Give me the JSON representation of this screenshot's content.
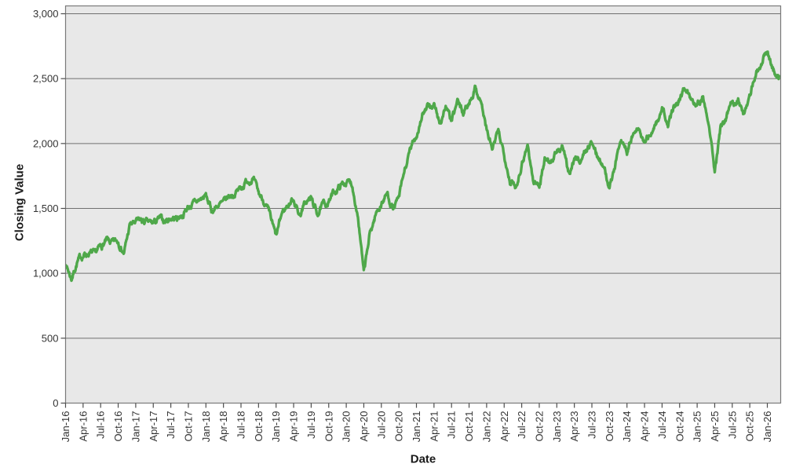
{
  "chart_data": {
    "type": "line",
    "title": "",
    "xlabel": "Date",
    "ylabel": "Closing Value",
    "ylim": [
      0,
      3050
    ],
    "y_ticks": [
      0,
      500,
      1000,
      1500,
      2000,
      2500,
      3000
    ],
    "y_tick_labels": [
      "0",
      "500",
      "1,000",
      "1,500",
      "2,000",
      "2,500",
      "3,000"
    ],
    "x_tick_labels": [
      "Jan-16",
      "Apr-16",
      "Jul-16",
      "Oct-16",
      "Jan-17",
      "Apr-17",
      "Jul-17",
      "Oct-17",
      "Jan-18",
      "Apr-18",
      "Jul-18",
      "Oct-18",
      "Jan-19",
      "Apr-19",
      "Jul-19",
      "Oct-19",
      "Jan-20",
      "Apr-20",
      "Jul-20",
      "Oct-20",
      "Jan-21",
      "Apr-21",
      "Jul-21",
      "Oct-21",
      "Jan-22",
      "Apr-22",
      "Jul-22",
      "Oct-22",
      "Jan-23",
      "Apr-23",
      "Jul-23",
      "Oct-23",
      "Jan-24",
      "Apr-24",
      "Jul-24",
      "Oct-24",
      "Jan-25",
      "Apr-25",
      "Jul-25",
      "Oct-25",
      "Jan-26"
    ],
    "x_tick_interval_months": 3,
    "grid": "horizontal",
    "legend_position": "none",
    "series": [
      {
        "name": "Closing Value",
        "color": "#4fa84a",
        "start_month": "Jan-16",
        "interval": "monthly",
        "values": [
          1080,
          960,
          1090,
          1140,
          1160,
          1140,
          1200,
          1245,
          1225,
          1245,
          1160,
          1370,
          1390,
          1400,
          1385,
          1380,
          1415,
          1400,
          1430,
          1425,
          1455,
          1515,
          1535,
          1565,
          1595,
          1480,
          1525,
          1535,
          1590,
          1620,
          1660,
          1715,
          1735,
          1610,
          1555,
          1430,
          1270,
          1460,
          1525,
          1580,
          1450,
          1540,
          1575,
          1460,
          1520,
          1555,
          1630,
          1675,
          1705,
          1690,
          1450,
          985,
          1290,
          1450,
          1540,
          1615,
          1500,
          1570,
          1790,
          1950,
          2060,
          2230,
          2270,
          2300,
          2150,
          2290,
          2160,
          2320,
          2230,
          2320,
          2430,
          2340,
          2100,
          1950,
          2080,
          1930,
          1720,
          1660,
          1850,
          2000,
          1700,
          1680,
          1890,
          1870,
          1930,
          1970,
          1760,
          1890,
          1870,
          1950,
          2010,
          1890,
          1860,
          1650,
          1850,
          2040,
          1950,
          2060,
          2110,
          1990,
          2080,
          2160,
          2260,
          2130,
          2280,
          2360,
          2430,
          2350,
          2320,
          2360,
          2180,
          1790,
          2100,
          2200,
          2310,
          2350,
          2200,
          2400,
          2530,
          2640,
          2710,
          2560,
          2520
        ]
      }
    ]
  },
  "colors": {
    "plot_bg": "#e8e8e8",
    "gridline": "#707070",
    "border": "#7a7a7a",
    "tick": "#4d4d4d",
    "tick_text": "#333333",
    "line": "#4fa84a"
  }
}
